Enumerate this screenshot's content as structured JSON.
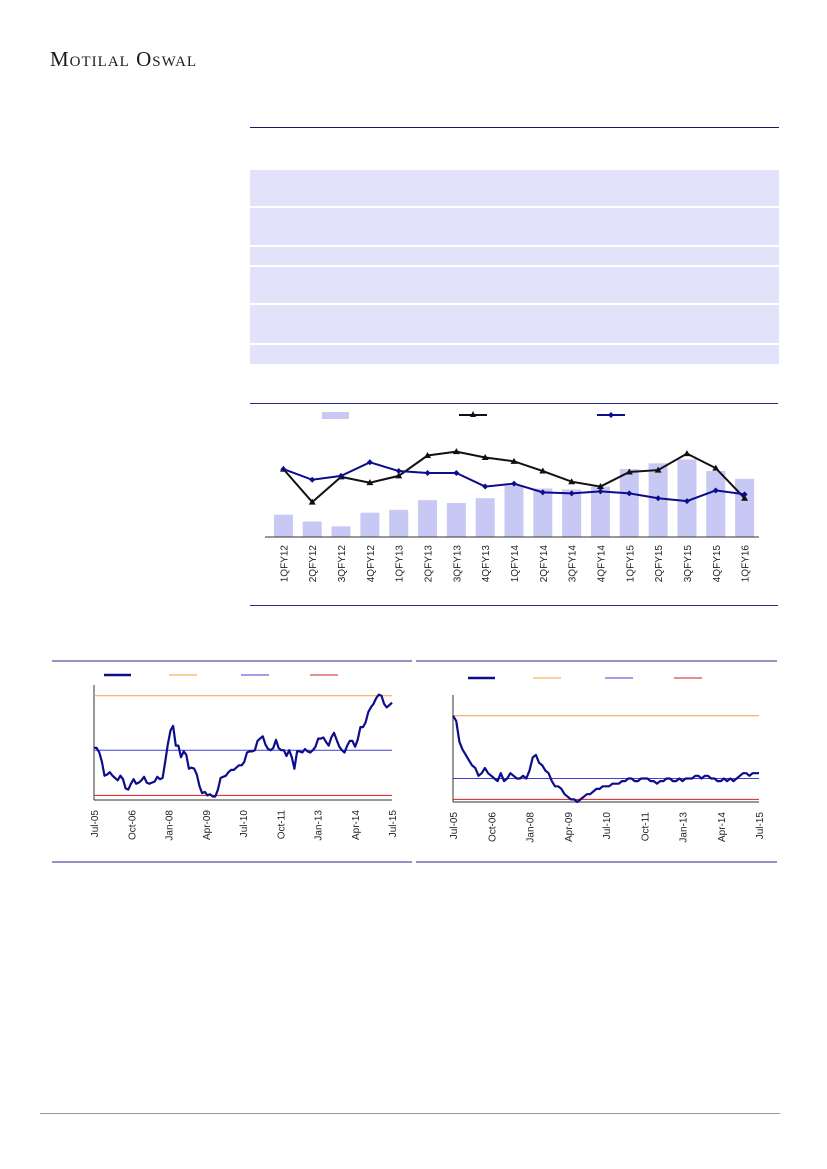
{
  "header": {
    "logo_text": "Motilal Oswal"
  },
  "colors": {
    "navy": "#0d0d8c",
    "black": "#111111",
    "bar": "#c8c8f4",
    "orange": "#f0a040",
    "blue_line": "#4040d0",
    "red": "#d02020",
    "table_band": "#e2e2fa"
  },
  "table": {
    "rows": 6
  },
  "chart_data": [
    {
      "type": "bar",
      "categories": [
        "1QFY12",
        "2QFY12",
        "3QFY12",
        "4QFY12",
        "1QFY13",
        "2QFY13",
        "3QFY13",
        "4QFY13",
        "1QFY14",
        "2QFY14",
        "3QFY14",
        "4QFY14",
        "1QFY15",
        "2QFY15",
        "3QFY15",
        "4QFY15",
        "1QFY16"
      ],
      "series": [
        {
          "kind": "bar",
          "values": [
            23,
            16,
            11,
            25,
            28,
            38,
            35,
            40,
            53,
            50,
            49,
            52,
            70,
            76,
            80,
            68,
            60
          ]
        },
        {
          "kind": "line",
          "marker": "triangle",
          "values": [
            70,
            36,
            62,
            56,
            63,
            84,
            88,
            82,
            78,
            68,
            57,
            52,
            67,
            69,
            86,
            71,
            40
          ]
        },
        {
          "kind": "line",
          "marker": "diamond",
          "values": [
            70,
            59,
            63,
            77,
            68,
            66,
            66,
            52,
            55,
            46,
            45,
            47,
            45,
            40,
            37,
            48,
            44
          ]
        }
      ],
      "ylim": [
        0,
        100
      ]
    },
    {
      "type": "line",
      "x_tick_labels": [
        "Jul-05",
        "Oct-06",
        "Jan-08",
        "Apr-09",
        "Jul-10",
        "Oct-11",
        "Jan-13",
        "Apr-14",
        "Jul-15"
      ],
      "series": [
        {
          "kind": "main",
          "values": [
            25.0,
            25.0,
            24.2,
            22.6,
            20.2,
            20.4,
            20.8,
            20.2,
            19.8,
            19.4,
            20.2,
            19.6,
            18.0,
            17.8,
            18.8,
            19.6,
            18.8,
            19.0,
            19.4,
            20.0,
            19.0,
            18.8,
            19.0,
            19.2,
            20.0,
            19.6,
            19.8,
            22.6,
            25.6,
            28.0,
            28.8,
            25.4,
            25.4,
            23.4,
            24.4,
            23.8,
            21.4,
            21.6,
            21.4,
            20.4,
            18.4,
            17.2,
            17.4,
            16.8,
            17.0,
            16.6,
            16.6,
            17.8,
            19.8,
            20.0,
            20.2,
            20.8,
            21.2,
            21.2,
            21.6,
            22.0,
            22.0,
            22.6,
            24.2,
            24.4,
            24.4,
            24.6,
            26.2,
            26.6,
            27.0,
            25.6,
            24.8,
            24.6,
            25.0,
            26.4,
            25.0,
            24.6,
            24.6,
            23.6,
            24.6,
            23.4,
            21.4,
            24.4,
            24.4,
            24.2,
            24.8,
            24.4,
            24.2,
            24.6,
            25.2,
            26.6,
            26.6,
            26.8,
            26.0,
            25.4,
            26.8,
            27.6,
            26.4,
            25.2,
            24.6,
            24.2,
            25.4,
            26.2,
            26.2,
            25.2,
            26.4,
            28.6,
            28.6,
            29.4,
            31.2,
            32.0,
            32.6,
            33.6,
            34.2,
            34.0,
            32.6,
            32.0,
            32.4,
            32.8
          ],
          "color": "#0d0d8c"
        },
        {
          "kind": "upper-band",
          "value": 34.0,
          "color": "#f0a040"
        },
        {
          "kind": "average",
          "value": 24.6,
          "color": "#4040d0"
        },
        {
          "kind": "lower-band",
          "value": 16.8,
          "color": "#d02020"
        }
      ],
      "ylim": [
        16.0,
        35.0
      ]
    },
    {
      "type": "line",
      "x_tick_labels": [
        "Jul-05",
        "Oct-06",
        "Jan-08",
        "Apr-09",
        "Jul-10",
        "Oct-11",
        "Jan-13",
        "Apr-14",
        "Jul-15"
      ],
      "series": [
        {
          "kind": "main",
          "values": [
            5.2,
            5.0,
            4.2,
            3.9,
            3.7,
            3.5,
            3.3,
            3.2,
            2.9,
            3.0,
            3.2,
            3.0,
            2.9,
            2.8,
            2.7,
            3.0,
            2.7,
            2.8,
            3.0,
            2.9,
            2.8,
            2.8,
            2.9,
            2.8,
            3.1,
            3.6,
            3.7,
            3.4,
            3.3,
            3.1,
            3.0,
            2.7,
            2.5,
            2.5,
            2.4,
            2.2,
            2.1,
            2.0,
            2.0,
            1.9,
            2.0,
            2.1,
            2.2,
            2.2,
            2.3,
            2.4,
            2.4,
            2.5,
            2.5,
            2.5,
            2.6,
            2.6,
            2.6,
            2.7,
            2.7,
            2.8,
            2.8,
            2.7,
            2.7,
            2.8,
            2.8,
            2.8,
            2.7,
            2.7,
            2.6,
            2.7,
            2.7,
            2.8,
            2.8,
            2.7,
            2.7,
            2.8,
            2.7,
            2.8,
            2.8,
            2.8,
            2.9,
            2.9,
            2.8,
            2.9,
            2.9,
            2.8,
            2.8,
            2.7,
            2.7,
            2.8,
            2.7,
            2.8,
            2.7,
            2.8,
            2.9,
            3.0,
            3.0,
            2.9,
            3.0,
            3.0,
            3.0
          ],
          "color": "#0d0d8c"
        },
        {
          "kind": "upper-band",
          "value": 5.2,
          "color": "#f0a040"
        },
        {
          "kind": "average",
          "value": 2.8,
          "color": "#4040d0"
        },
        {
          "kind": "lower-band",
          "value": 2.0,
          "color": "#d02020"
        }
      ],
      "ylim": [
        1.9,
        5.8
      ]
    }
  ]
}
